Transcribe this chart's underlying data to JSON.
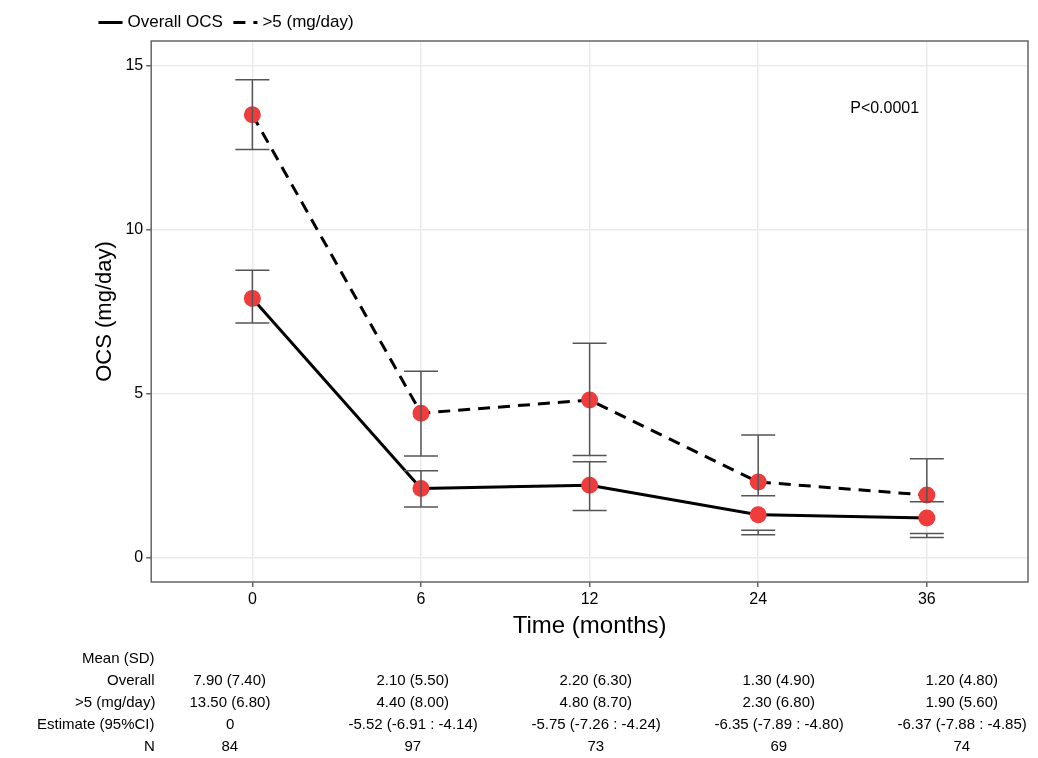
{
  "chart_data": {
    "type": "line",
    "xlabel": "Time (months)",
    "ylabel": "OCS (mg/day)",
    "categories": [
      "0",
      "6",
      "12",
      "24",
      "36"
    ],
    "ylim": [
      -0.75,
      15.75
    ],
    "yticks": [
      0,
      5,
      10,
      15
    ],
    "grid": true,
    "legend": "top left",
    "marker": "circle",
    "series": [
      {
        "name": "Overall OCS",
        "color": "#000000",
        "colors": [
          "#f03c3c",
          "#f03c3c",
          "#f03c3c",
          "#f03c3c",
          "#f03c3c"
        ],
        "line_style": "solid",
        "values": [
          7.9,
          2.1,
          2.2,
          1.3,
          1.2
        ],
        "errors": [
          [
            7.15,
            8.76
          ],
          [
            1.54,
            2.64
          ],
          [
            1.43,
            2.92
          ],
          [
            0.69,
            0.83
          ],
          [
            0.61,
            0.73
          ]
        ],
        "value_labels": [
          "7.90 (7.40)",
          "2.10 (5.50)",
          "2.20 (6.30)",
          "1.30 (4.90)",
          "1.20 (4.80)"
        ]
      },
      {
        "name": ">5 (mg/day)",
        "color": "#000000",
        "colors": [
          "#f03c3c",
          "#f03c3c",
          "#f03c3c",
          "#f03c3c",
          "#f03c3c"
        ],
        "line_style": "dashed",
        "values": [
          13.5,
          4.4,
          4.8,
          2.3,
          1.9
        ],
        "errors": [
          [
            12.44,
            14.57
          ],
          [
            3.09,
            5.68
          ],
          [
            3.11,
            6.53
          ],
          [
            1.88,
            3.73
          ],
          [
            1.7,
            3.01
          ]
        ],
        "value_labels": [
          "13.50 (6.80)",
          "4.40 (8.00)",
          "4.80 (8.70)",
          "2.30 (6.80)",
          "1.90 (5.60)"
        ]
      }
    ],
    "annotations": [
      "P<0.0001",
      "Mean  (SD)",
      "Overall",
      ">5 (mg/day)",
      "Estimate  (95%CI)",
      "N",
      "0",
      "-5.52 (-6.91 : -4.14)",
      "-5.75 (-7.26 : -4.24)",
      "-6.35 (-7.89 : -4.80)",
      "-6.37 (-7.88 : -4.85)",
      "84",
      "97",
      "73",
      "69",
      "74"
    ]
  }
}
